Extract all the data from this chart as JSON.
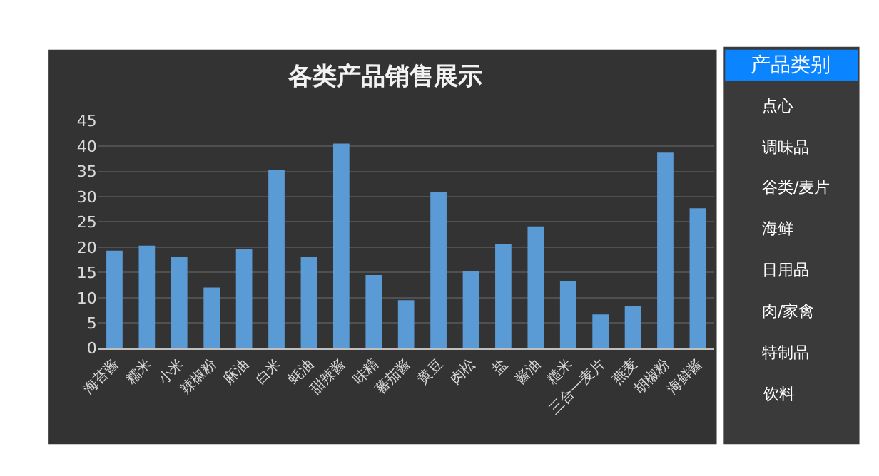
{
  "chart_data": [
    {
      "type": "bar",
      "title": "各类产品销售展示",
      "categories": [
        "海苔酱",
        "糯米",
        "小米",
        "辣椒粉",
        "麻油",
        "白米",
        "蚝油",
        "甜辣酱",
        "味精",
        "蕃茄酱",
        "黄豆",
        "肉松",
        "盐",
        "酱油",
        "糙米",
        "三合一麦片",
        "燕麦",
        "胡椒粉",
        "海鲜酱"
      ],
      "values": [
        19.3,
        20.3,
        18.0,
        12.0,
        19.6,
        35.3,
        18.0,
        40.5,
        14.5,
        9.5,
        31.0,
        15.3,
        20.6,
        24.1,
        13.3,
        6.7,
        8.3,
        38.7,
        27.7
      ],
      "color": "#5b9bd5",
      "ylim": [
        0,
        45
      ],
      "yticks": [
        0,
        5,
        10,
        15,
        20,
        25,
        30,
        35,
        40,
        45
      ],
      "grid": "y"
    },
    {
      "type": "other",
      "title": "产品类别",
      "annotations": [
        "点心",
        "调味品",
        "谷类/麦片",
        "海鲜",
        "日用品",
        "肉/家禽",
        "特制品",
        "饮料"
      ]
    }
  ]
}
